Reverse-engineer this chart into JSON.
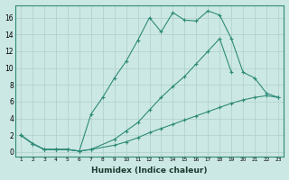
{
  "xlabel": "Humidex (Indice chaleur)",
  "line_color": "#2e8b77",
  "bg_color": "#cce8e4",
  "grid_color": "#aecfca",
  "series1_x": [
    1,
    2,
    3,
    4,
    5,
    6,
    7,
    8,
    9,
    10,
    11,
    12,
    13,
    14,
    15,
    16,
    17,
    18,
    19,
    20,
    21,
    22,
    23
  ],
  "series1_y": [
    2,
    1,
    0.3,
    0.3,
    0.3,
    0.1,
    4.5,
    6.5,
    8.8,
    10.8,
    13.3,
    16.0,
    14.3,
    16.6,
    15.7,
    15.6,
    16.8,
    16.3,
    13.5,
    9.5,
    8.8,
    7.0,
    6.5
  ],
  "series2_x": [
    1,
    2,
    3,
    4,
    5,
    6,
    7,
    9,
    10,
    11,
    12,
    13,
    14,
    15,
    16,
    17,
    18,
    19
  ],
  "series2_y": [
    2,
    1,
    0.3,
    0.3,
    0.3,
    0.1,
    0.3,
    1.5,
    2.5,
    3.5,
    5.0,
    6.5,
    7.8,
    9.0,
    10.5,
    12.0,
    13.5,
    9.5
  ],
  "series3_x": [
    1,
    2,
    3,
    4,
    5,
    6,
    7,
    9,
    10,
    11,
    12,
    13,
    14,
    15,
    16,
    17,
    18,
    19,
    20,
    21,
    22,
    23
  ],
  "series3_y": [
    2,
    1,
    0.3,
    0.3,
    0.3,
    0.1,
    0.3,
    0.8,
    1.2,
    1.7,
    2.3,
    2.8,
    3.3,
    3.8,
    4.3,
    4.8,
    5.3,
    5.8,
    6.2,
    6.5,
    6.7,
    6.5
  ],
  "yticks": [
    0,
    2,
    4,
    6,
    8,
    10,
    12,
    14,
    16
  ],
  "xticks": [
    1,
    2,
    3,
    4,
    5,
    6,
    7,
    8,
    9,
    10,
    11,
    12,
    13,
    14,
    15,
    16,
    17,
    18,
    19,
    20,
    21,
    22,
    23
  ],
  "ylim": [
    -0.5,
    17.5
  ],
  "xlim": [
    0.5,
    23.5
  ]
}
